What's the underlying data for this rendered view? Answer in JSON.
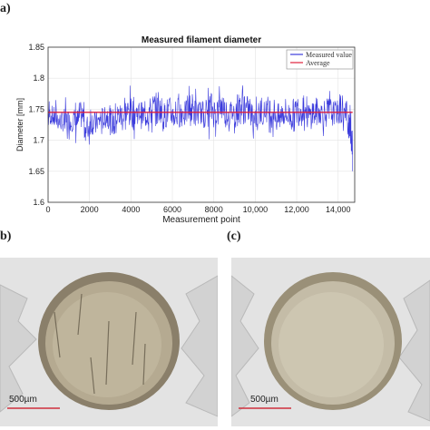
{
  "panels": {
    "a_label": "a)",
    "b_label": "b)",
    "c_label": "(c)"
  },
  "chart_data": {
    "type": "line",
    "title": "Measured filament diameter",
    "xlabel": "Measurement point",
    "ylabel": "Diameter [mm]",
    "xlim": [
      0,
      14800
    ],
    "ylim": [
      1.6,
      1.85
    ],
    "xticks": [
      0,
      2000,
      4000,
      6000,
      8000,
      10000,
      12000,
      14000
    ],
    "xtick_labels": [
      "0",
      "2000",
      "4000",
      "6000",
      "8000",
      "10,000",
      "12,000",
      "14,000"
    ],
    "yticks": [
      1.6,
      1.65,
      1.7,
      1.75,
      1.8,
      1.85
    ],
    "ytick_labels": [
      "1.6",
      "1.65",
      "1.7",
      "1.75",
      "1.8",
      "1.85"
    ],
    "grid": true,
    "legend": "top-right",
    "series": [
      {
        "name": "Measured value",
        "color": "#3b3bdc",
        "x": [
          0,
          250,
          500,
          750,
          1000,
          1250,
          1500,
          1750,
          2000,
          2250,
          2500,
          2750,
          3000,
          3250,
          3500,
          3750,
          4000,
          4250,
          4500,
          4750,
          5000,
          5250,
          5500,
          5750,
          6000,
          6250,
          6500,
          6750,
          7000,
          7250,
          7500,
          7750,
          8000,
          8250,
          8500,
          8750,
          9000,
          9250,
          9500,
          9750,
          10000,
          10250,
          10500,
          10750,
          11000,
          11250,
          11500,
          11750,
          12000,
          12250,
          12500,
          12750,
          13000,
          13250,
          13500,
          13750,
          14000,
          14250,
          14500,
          14600,
          14700
        ],
        "min": [
          1.71,
          1.7,
          1.7,
          1.69,
          1.7,
          1.69,
          1.7,
          1.68,
          1.69,
          1.7,
          1.7,
          1.7,
          1.69,
          1.7,
          1.69,
          1.7,
          1.7,
          1.71,
          1.7,
          1.7,
          1.7,
          1.71,
          1.7,
          1.7,
          1.7,
          1.7,
          1.71,
          1.7,
          1.7,
          1.71,
          1.7,
          1.7,
          1.7,
          1.71,
          1.7,
          1.71,
          1.7,
          1.7,
          1.71,
          1.7,
          1.7,
          1.71,
          1.71,
          1.7,
          1.69,
          1.7,
          1.7,
          1.69,
          1.7,
          1.71,
          1.7,
          1.7,
          1.71,
          1.7,
          1.7,
          1.71,
          1.7,
          1.69,
          1.68,
          1.66,
          1.65
        ],
        "max": [
          1.77,
          1.77,
          1.76,
          1.77,
          1.76,
          1.77,
          1.78,
          1.76,
          1.77,
          1.76,
          1.77,
          1.78,
          1.77,
          1.78,
          1.79,
          1.79,
          1.79,
          1.78,
          1.78,
          1.79,
          1.8,
          1.79,
          1.78,
          1.79,
          1.78,
          1.79,
          1.78,
          1.8,
          1.79,
          1.78,
          1.79,
          1.8,
          1.79,
          1.8,
          1.79,
          1.78,
          1.8,
          1.81,
          1.79,
          1.78,
          1.78,
          1.78,
          1.79,
          1.79,
          1.78,
          1.79,
          1.78,
          1.79,
          1.8,
          1.79,
          1.78,
          1.79,
          1.78,
          1.79,
          1.79,
          1.78,
          1.8,
          1.79,
          1.78,
          1.75,
          1.74
        ]
      },
      {
        "name": "Average",
        "color": "#e0203c",
        "x": [
          0,
          14700
        ],
        "y": [
          1.745,
          1.745
        ]
      }
    ]
  },
  "scale_bars": {
    "b": "500µm",
    "c": "500µm"
  }
}
